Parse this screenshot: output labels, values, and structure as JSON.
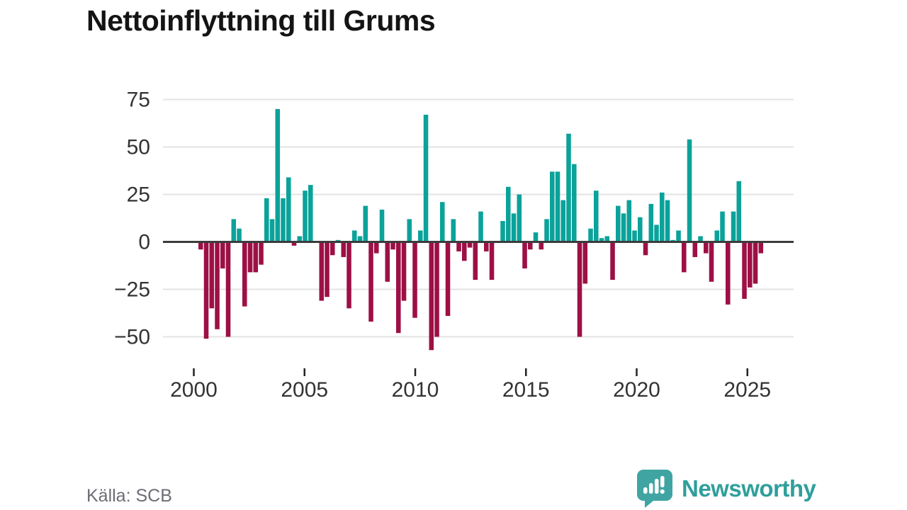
{
  "title": "Nettoinflyttning till Grums",
  "footer": {
    "source": "Källa: SCB",
    "brand": "Newsworthy"
  },
  "colors": {
    "positive_bar": "#0ba29a",
    "negative_bar": "#9d1045",
    "gridline": "#e3e3e3",
    "zero_line": "#3c3c3c",
    "axis_text": "#333333",
    "tick_mark": "#222222",
    "title_text": "#141414",
    "source_text": "#6c6c75",
    "logo_bubble": "#40a5a2",
    "brand_text": "#2f9f9c"
  },
  "chart_data": {
    "type": "bar",
    "title": "Nettoinflyttning till Grums",
    "frequency": "quarterly",
    "start_period": "2000 Q1",
    "end_period": "2025 Q3",
    "xlabel": "",
    "ylabel": "",
    "xticks": [
      2000,
      2005,
      2010,
      2015,
      2020,
      2025
    ],
    "yticks": [
      75,
      50,
      25,
      0,
      -25,
      -50
    ],
    "ylim": [
      -62,
      80
    ],
    "grid": "horizontal",
    "legend": "none",
    "values": [
      -4,
      -51,
      -35,
      -46,
      -14,
      -50,
      12,
      7,
      -34,
      -16,
      -16,
      -12,
      23,
      12,
      70,
      23,
      34,
      -2,
      3,
      27,
      30,
      0,
      -31,
      -29,
      -7,
      1,
      -8,
      -35,
      6,
      3,
      19,
      -42,
      -6,
      17,
      -21,
      -4,
      -48,
      -31,
      12,
      -40,
      6,
      67,
      -57,
      -50,
      21,
      -39,
      12,
      -5,
      -10,
      -3,
      -20,
      16,
      -5,
      -20,
      0,
      11,
      29,
      15,
      25,
      -14,
      -4,
      5,
      -4,
      12,
      37,
      37,
      22,
      57,
      41,
      -50,
      -22,
      7,
      27,
      2,
      3,
      -20,
      19,
      15,
      22,
      6,
      13,
      -7,
      20,
      9,
      26,
      22,
      1,
      6,
      -16,
      54,
      -8,
      3,
      -6,
      -21,
      6,
      16,
      -33,
      16,
      32,
      -30,
      -24,
      -22,
      -6
    ]
  }
}
